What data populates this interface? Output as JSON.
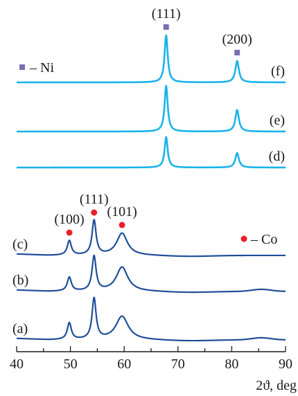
{
  "chart_data": {
    "type": "line",
    "xlabel": "2ϑ, deg",
    "xlim": [
      40,
      90
    ],
    "xticks": [
      40,
      50,
      60,
      70,
      80,
      90
    ],
    "grid": false,
    "colors": {
      "ni": "#1ab3ea",
      "co": "#1f4e99",
      "ni_marker": "#7b6fb3",
      "co_marker": "#e8202a"
    },
    "series": [
      {
        "name": "(f)",
        "group": "Ni",
        "peaks": [
          {
            "center": 67.8,
            "height": 68,
            "width": 0.35
          },
          {
            "center": 81.0,
            "height": 31,
            "width": 0.4
          }
        ]
      },
      {
        "name": "(e)",
        "group": "Ni",
        "peaks": [
          {
            "center": 67.8,
            "height": 66,
            "width": 0.35
          },
          {
            "center": 81.0,
            "height": 31,
            "width": 0.4
          }
        ]
      },
      {
        "name": "(d)",
        "group": "Ni",
        "peaks": [
          {
            "center": 67.8,
            "height": 44,
            "width": 0.35
          },
          {
            "center": 81.0,
            "height": 21,
            "width": 0.4
          }
        ]
      },
      {
        "name": "(c)",
        "group": "Co",
        "peaks": [
          {
            "center": 49.8,
            "height": 21,
            "width": 0.45
          },
          {
            "center": 54.4,
            "height": 50,
            "width": 0.45
          },
          {
            "center": 59.6,
            "height": 32,
            "width": 1.2
          }
        ]
      },
      {
        "name": "(b)",
        "group": "Co",
        "peaks": [
          {
            "center": 49.8,
            "height": 20,
            "width": 0.45
          },
          {
            "center": 54.4,
            "height": 50,
            "width": 0.45
          },
          {
            "center": 59.6,
            "height": 35,
            "width": 1.3
          }
        ]
      },
      {
        "name": "(a)",
        "group": "Co",
        "peaks": [
          {
            "center": 49.8,
            "height": 24,
            "width": 0.45
          },
          {
            "center": 54.4,
            "height": 59,
            "width": 0.45
          },
          {
            "center": 59.6,
            "height": 34,
            "width": 1.4
          }
        ]
      }
    ],
    "annotations": [
      {
        "text": "(111)",
        "x": 67.8,
        "series": "(f)",
        "marker": "ni"
      },
      {
        "text": "(200)",
        "x": 81.0,
        "series": "(f)",
        "marker": "ni"
      },
      {
        "text": "(100)",
        "x": 49.8,
        "series": "(c)",
        "marker": "co"
      },
      {
        "text": "(111)",
        "x": 54.4,
        "series": "(c)",
        "marker": "co"
      },
      {
        "text": "(101)",
        "x": 59.6,
        "series": "(c)",
        "marker": "co"
      }
    ],
    "legend": [
      {
        "marker": "ni",
        "text": "– Ni",
        "placement": "top-left"
      },
      {
        "marker": "co",
        "text": "– Co",
        "placement": "middle-right"
      }
    ]
  }
}
